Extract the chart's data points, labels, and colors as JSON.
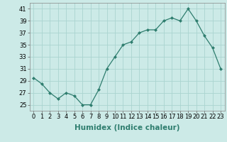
{
  "x": [
    0,
    1,
    2,
    3,
    4,
    5,
    6,
    7,
    8,
    9,
    10,
    11,
    12,
    13,
    14,
    15,
    16,
    17,
    18,
    19,
    20,
    21,
    22,
    23
  ],
  "y": [
    29.5,
    28.5,
    27.0,
    26.0,
    27.0,
    26.5,
    25.0,
    25.0,
    27.5,
    31.0,
    33.0,
    35.0,
    35.5,
    37.0,
    37.5,
    37.5,
    39.0,
    39.5,
    39.0,
    41.0,
    39.0,
    36.5,
    34.5,
    31.0
  ],
  "line_color": "#2e7d6e",
  "marker": "D",
  "marker_size": 2.5,
  "bg_color": "#cceae7",
  "grid_color": "#aad4d0",
  "xlabel": "Humidex (Indice chaleur)",
  "ylim": [
    24.0,
    42.0
  ],
  "yticks": [
    25,
    27,
    29,
    31,
    33,
    35,
    37,
    39,
    41
  ],
  "xticks": [
    0,
    1,
    2,
    3,
    4,
    5,
    6,
    7,
    8,
    9,
    10,
    11,
    12,
    13,
    14,
    15,
    16,
    17,
    18,
    19,
    20,
    21,
    22,
    23
  ],
  "xlabel_fontsize": 7.5,
  "tick_fontsize": 6.0
}
